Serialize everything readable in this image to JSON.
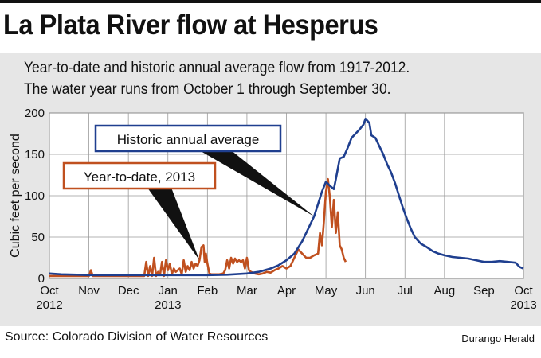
{
  "header": {
    "title": "La Plata River flow at Hesperus",
    "subtitle_line1": "Year-to-date and historic annual average flow from 1917-2012.",
    "subtitle_line2": "The water year runs from October 1 through September 30."
  },
  "footer": {
    "source": "Source: Colorado Division of Water Resources",
    "credit": "Durango Herald"
  },
  "colors": {
    "historic": "#1f3f8f",
    "ytd": "#c0501f",
    "grid": "#9a9a9a",
    "panel": "#e6e6e6"
  },
  "chart_data": {
    "type": "line",
    "title": "La Plata River flow at Hesperus",
    "ylabel": "Cubic feet per second",
    "ylim": [
      0,
      200
    ],
    "yticks": [
      0,
      50,
      100,
      150,
      200
    ],
    "xlim": [
      0,
      12
    ],
    "grid": true,
    "x_ticks": [
      {
        "x": 0,
        "label": "Oct",
        "sub": "2012"
      },
      {
        "x": 1,
        "label": "Nov",
        "sub": ""
      },
      {
        "x": 2,
        "label": "Dec",
        "sub": ""
      },
      {
        "x": 3,
        "label": "Jan",
        "sub": "2013"
      },
      {
        "x": 4,
        "label": "Feb",
        "sub": ""
      },
      {
        "x": 5,
        "label": "Mar",
        "sub": ""
      },
      {
        "x": 6,
        "label": "Apr",
        "sub": ""
      },
      {
        "x": 7,
        "label": "May",
        "sub": ""
      },
      {
        "x": 8,
        "label": "Jun",
        "sub": ""
      },
      {
        "x": 9,
        "label": "Jul",
        "sub": ""
      },
      {
        "x": 10,
        "label": "Aug",
        "sub": ""
      },
      {
        "x": 11,
        "label": "Sep",
        "sub": ""
      },
      {
        "x": 12,
        "label": "Oct",
        "sub": "2013"
      }
    ],
    "series": [
      {
        "name": "Historic annual average",
        "x": [
          0,
          0.3,
          0.7,
          1.0,
          1.5,
          2.0,
          2.5,
          3.0,
          3.5,
          4.0,
          4.5,
          5.0,
          5.3,
          5.6,
          5.8,
          6.0,
          6.2,
          6.4,
          6.55,
          6.7,
          6.8,
          6.9,
          7.0,
          7.1,
          7.2,
          7.25,
          7.35,
          7.45,
          7.55,
          7.65,
          7.75,
          7.85,
          7.95,
          8.0,
          8.1,
          8.15,
          8.25,
          8.35,
          8.45,
          8.55,
          8.65,
          8.75,
          8.85,
          8.95,
          9.05,
          9.15,
          9.25,
          9.4,
          9.55,
          9.7,
          9.85,
          10.0,
          10.2,
          10.4,
          10.6,
          10.8,
          11.0,
          11.2,
          11.4,
          11.6,
          11.8,
          11.9,
          12.0
        ],
        "y": [
          6,
          5,
          4.5,
          4,
          4,
          4,
          4,
          4,
          4,
          4,
          4.5,
          6,
          8,
          12,
          16,
          22,
          30,
          45,
          60,
          75,
          90,
          105,
          117,
          112,
          108,
          120,
          145,
          147,
          158,
          170,
          175,
          180,
          186,
          193,
          188,
          173,
          170,
          160,
          150,
          138,
          128,
          115,
          100,
          85,
          72,
          60,
          50,
          42,
          38,
          33,
          30,
          28,
          26,
          25,
          24,
          22,
          20,
          20,
          21,
          20,
          19,
          14,
          12
        ]
      },
      {
        "name": "Year-to-date, 2013",
        "x": [
          0,
          0.3,
          0.6,
          1.0,
          1.05,
          1.1,
          1.2,
          1.5,
          2.0,
          2.4,
          2.45,
          2.5,
          2.55,
          2.6,
          2.65,
          2.7,
          2.75,
          2.8,
          2.85,
          2.9,
          2.95,
          3.0,
          3.05,
          3.1,
          3.15,
          3.2,
          3.3,
          3.35,
          3.4,
          3.45,
          3.5,
          3.55,
          3.6,
          3.65,
          3.7,
          3.75,
          3.8,
          3.85,
          3.9,
          3.93,
          3.96,
          4.0,
          4.05,
          4.1,
          4.2,
          4.3,
          4.4,
          4.45,
          4.5,
          4.55,
          4.6,
          4.65,
          4.7,
          4.75,
          4.8,
          4.85,
          4.9,
          4.95,
          5.0,
          5.05,
          5.1,
          5.2,
          5.3,
          5.4,
          5.5,
          5.6,
          5.7,
          5.8,
          5.9,
          6.0,
          6.1,
          6.2,
          6.3,
          6.4,
          6.5,
          6.6,
          6.7,
          6.8,
          6.85,
          6.9,
          6.95,
          7.0,
          7.05,
          7.1,
          7.15,
          7.2,
          7.25,
          7.3,
          7.35,
          7.4,
          7.45,
          7.5
        ],
        "y": [
          3,
          3,
          3,
          3,
          10,
          3,
          3,
          3,
          3,
          3,
          20,
          3,
          15,
          3,
          25,
          3,
          8,
          4,
          20,
          3,
          22,
          10,
          18,
          5,
          12,
          8,
          12,
          5,
          22,
          8,
          15,
          10,
          20,
          12,
          18,
          15,
          22,
          38,
          40,
          20,
          30,
          18,
          6,
          5,
          5,
          5,
          6,
          10,
          22,
          12,
          25,
          18,
          24,
          20,
          22,
          20,
          22,
          12,
          25,
          10,
          8,
          6,
          5,
          6,
          8,
          7,
          10,
          12,
          15,
          12,
          15,
          25,
          35,
          30,
          25,
          25,
          28,
          30,
          55,
          40,
          70,
          105,
          120,
          98,
          62,
          95,
          55,
          80,
          40,
          35,
          25,
          20
        ]
      }
    ],
    "annotations": [
      {
        "text": "Historic annual average",
        "series": 0,
        "point_x": 6.7
      },
      {
        "text": "Year-to-date, 2013",
        "series": 1,
        "point_x": 3.8
      }
    ]
  }
}
